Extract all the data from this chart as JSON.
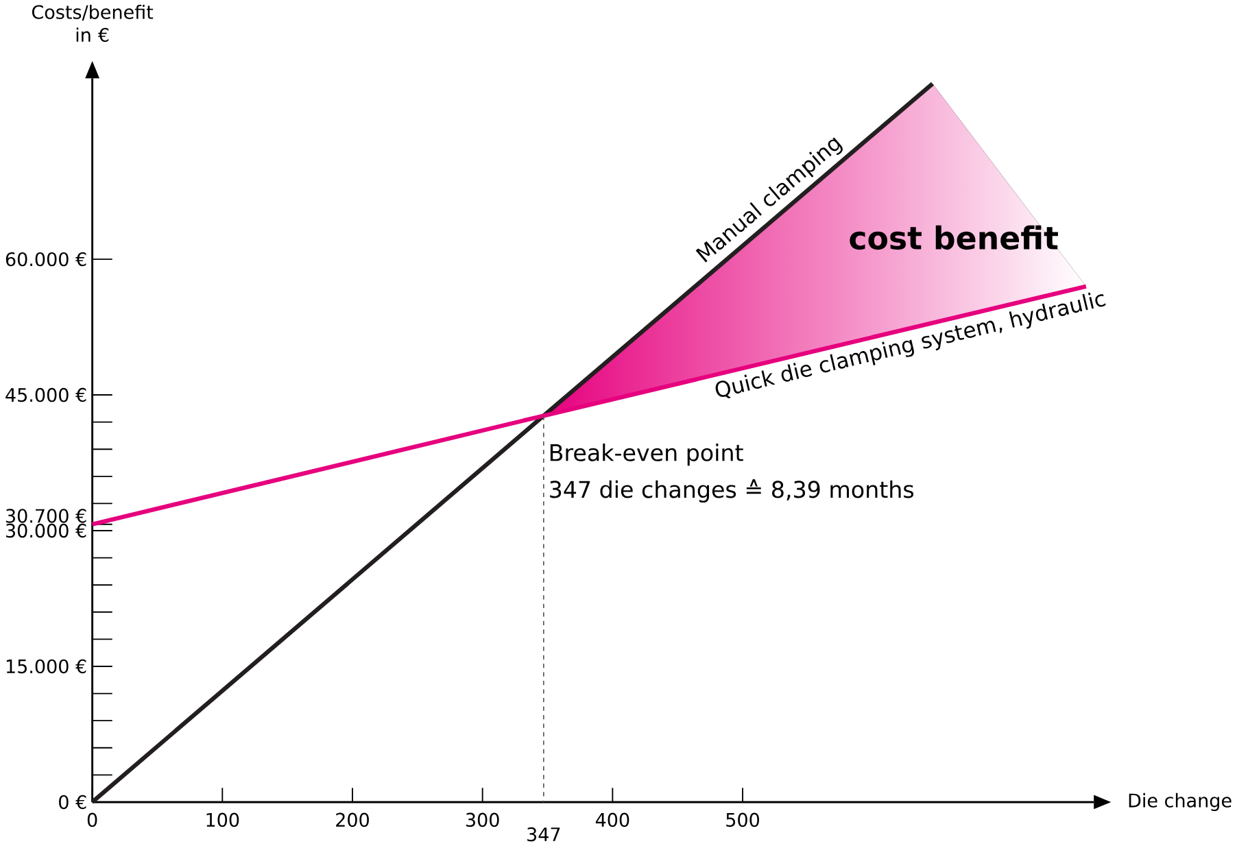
{
  "chart_data": {
    "type": "line",
    "xlabel": "Die change",
    "ylabel": "Costs/benefit in €",
    "series": [
      {
        "name": "Manual clamping",
        "color": "#231f20",
        "x": [
          0,
          347,
          646
        ],
        "values": [
          0,
          42700,
          79400
        ]
      },
      {
        "name": "Quick die clamping system, hydraulic",
        "color": "#e6007e",
        "x": [
          0,
          347,
          764
        ],
        "values": [
          30700,
          42700,
          57000
        ]
      }
    ],
    "xlim": [
      0,
      770
    ],
    "ylim": [
      0,
      80000
    ],
    "xticks": [
      0,
      100,
      200,
      300,
      400,
      500
    ],
    "yticks": [
      {
        "value": 0,
        "label": "0 €"
      },
      {
        "value": 3000,
        "label": null
      },
      {
        "value": 6000,
        "label": null
      },
      {
        "value": 9000,
        "label": null
      },
      {
        "value": 12000,
        "label": null
      },
      {
        "value": 15000,
        "label": "15.000 €"
      },
      {
        "value": 18000,
        "label": null
      },
      {
        "value": 21000,
        "label": null
      },
      {
        "value": 24000,
        "label": null
      },
      {
        "value": 27000,
        "label": null
      },
      {
        "value": 30000,
        "label": "30.000 €"
      },
      {
        "value": 30700,
        "label": "30.700 €"
      },
      {
        "value": 33000,
        "label": null
      },
      {
        "value": 36000,
        "label": null
      },
      {
        "value": 39000,
        "label": null
      },
      {
        "value": 42000,
        "label": null
      },
      {
        "value": 45000,
        "label": "45.000 €"
      },
      {
        "value": 60000,
        "label": "60.000 €"
      }
    ],
    "ref_lines": [
      {
        "axis": "x",
        "value": 347,
        "label": "347",
        "color": "#555555",
        "line_style": "dashed"
      }
    ],
    "annotations": [
      "**cost benefit**",
      "Break-even point",
      "347 die changes ≙ 8,39 months"
    ],
    "legend": false,
    "grid": false,
    "marker": "none",
    "line_style": "solid"
  }
}
